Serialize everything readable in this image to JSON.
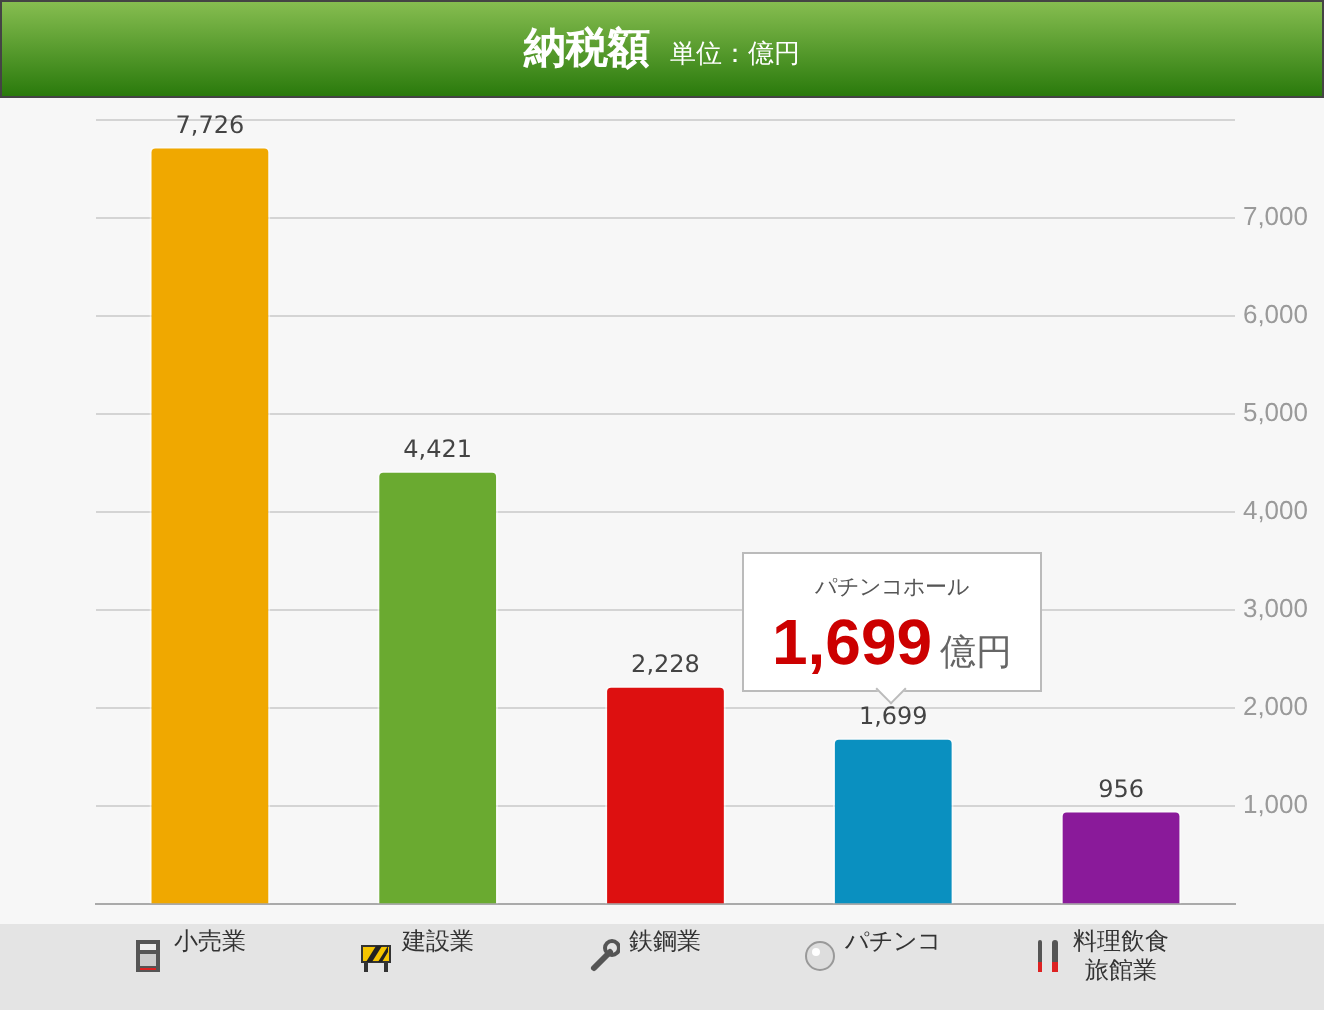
{
  "chart_data": {
    "type": "bar",
    "title": "納税額",
    "subtitle": "単位：億円",
    "categories": [
      "小売業",
      "建設業",
      "鉄鋼業",
      "パチンコ",
      "料理飲食旅館業"
    ],
    "values": [
      7726,
      4421,
      2228,
      1699,
      956
    ],
    "colors": [
      "#f0a800",
      "#6aaa30",
      "#dd1010",
      "#0a90c0",
      "#8a1a9a"
    ],
    "ylim": [
      0,
      8000
    ],
    "yticks": [
      {
        "value": 0,
        "label": null
      },
      {
        "value": 1000,
        "label": "1,000"
      },
      {
        "value": 2000,
        "label": "2,000"
      },
      {
        "value": 3000,
        "label": "3,000"
      },
      {
        "value": 4000,
        "label": "4,000"
      },
      {
        "value": 5000,
        "label": "5,000"
      },
      {
        "value": 6000,
        "label": "6,000"
      },
      {
        "value": 7000,
        "label": "7,000"
      },
      {
        "value": 8000,
        "label": null
      }
    ],
    "grid": "y",
    "value_labels": [
      "7,726",
      "4,421",
      "2,228",
      "1,699",
      "956"
    ],
    "annotations": [
      "パチンコホール",
      "1,699",
      "億円"
    ]
  }
}
